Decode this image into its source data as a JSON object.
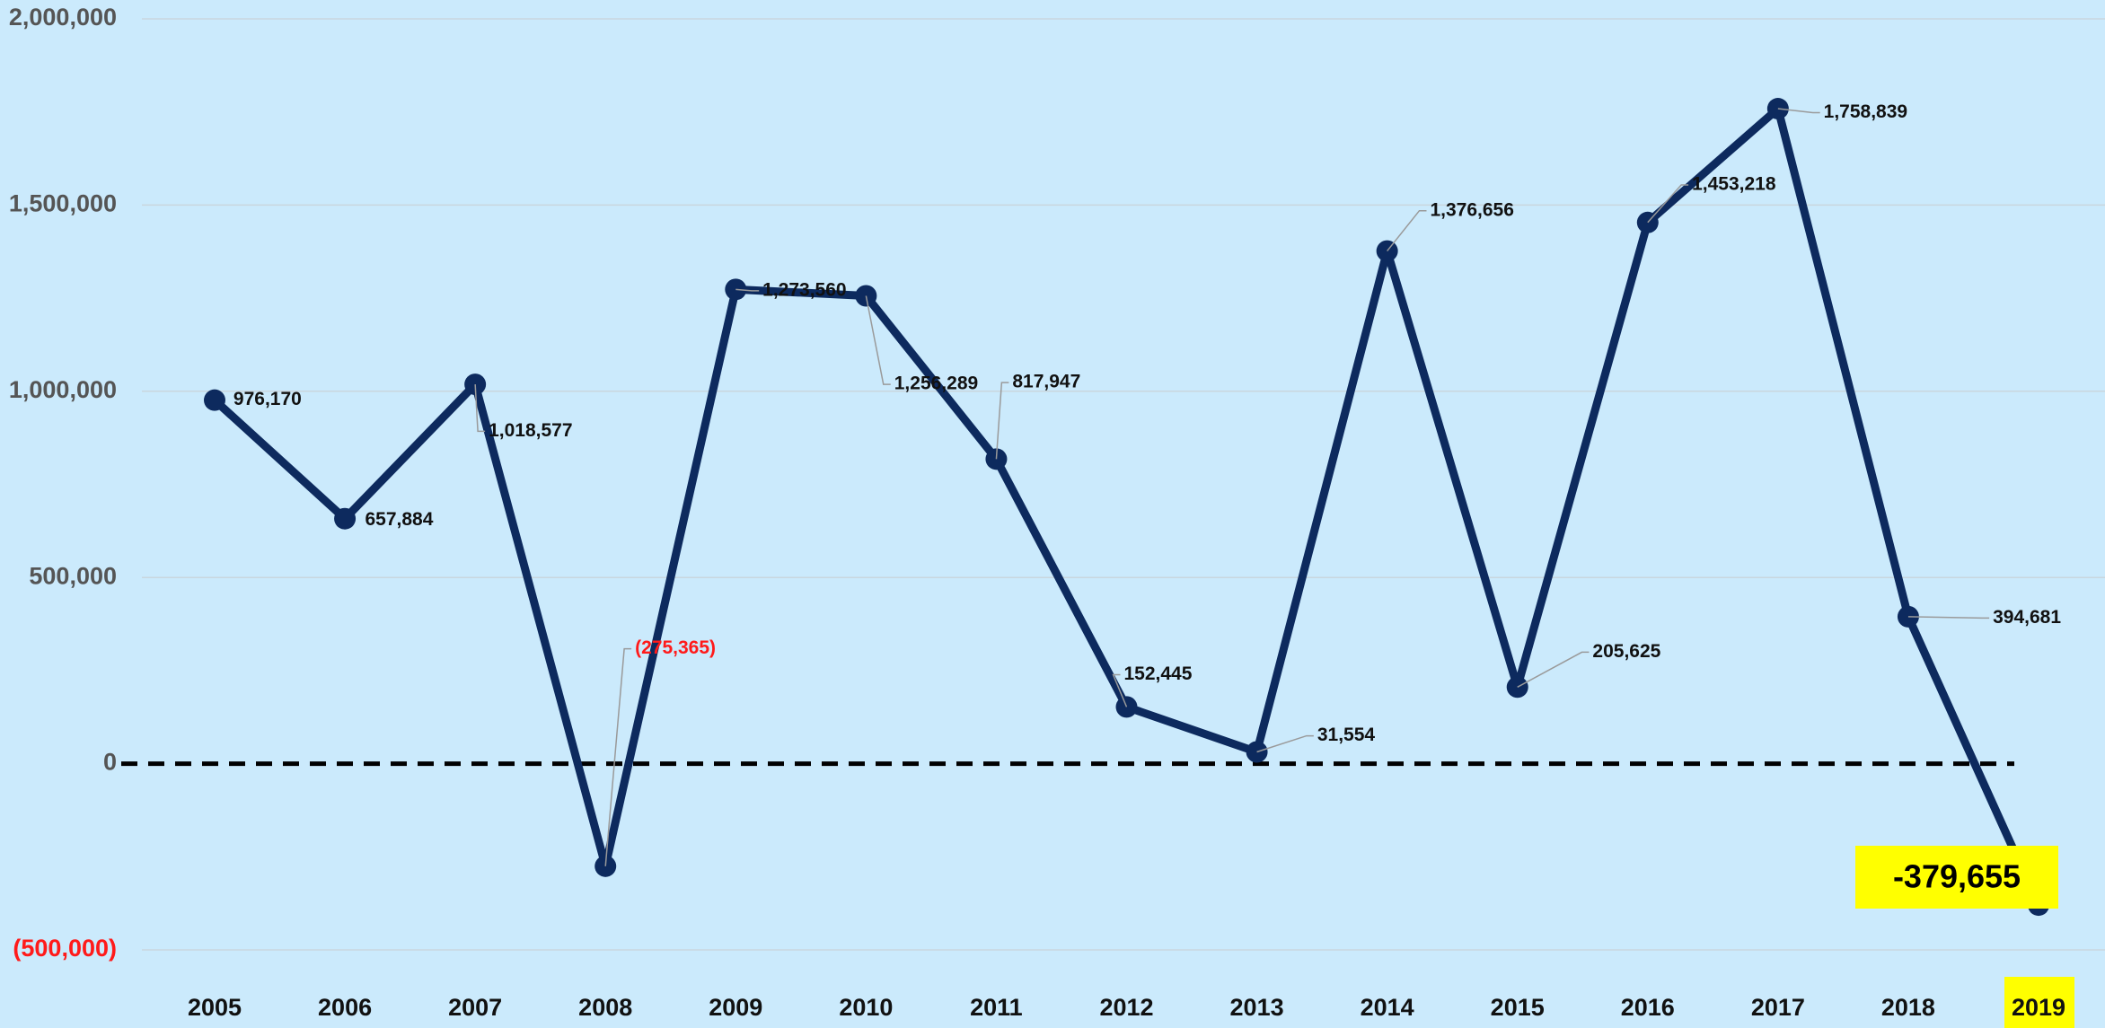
{
  "chart_data": {
    "type": "line",
    "categories": [
      "2005",
      "2006",
      "2007",
      "2008",
      "2009",
      "2010",
      "2011",
      "2012",
      "2013",
      "2014",
      "2015",
      "2016",
      "2017",
      "2018",
      "2019"
    ],
    "series": [
      {
        "color": "#0d2a5e",
        "values": [
          976170,
          657884,
          1018577,
          -275365,
          1273560,
          1256289,
          817947,
          152445,
          31554,
          1376656,
          205625,
          1453218,
          1758839,
          394681,
          -379655
        ],
        "value_labels": [
          "976,170",
          "657,884",
          "1,018,577",
          "(275,365)",
          "1,273,560",
          "1,256,289",
          "817,947",
          "152,445",
          "31,554",
          "1,376,656",
          "205,625",
          "1,453,218",
          "1,758,839",
          "394,681",
          "-379,655"
        ]
      }
    ],
    "ylim": [
      -500000,
      2000000
    ],
    "yticks": [
      {
        "value": -500000,
        "label": "(500,000)"
      },
      0,
      {
        "value": 500000,
        "label": "500,000"
      },
      {
        "value": 1000000,
        "label": "1,000,000"
      },
      {
        "value": 1500000,
        "label": "1,500,000"
      },
      {
        "value": 2000000,
        "label": "2,000,000"
      }
    ],
    "grid": true
  }
}
